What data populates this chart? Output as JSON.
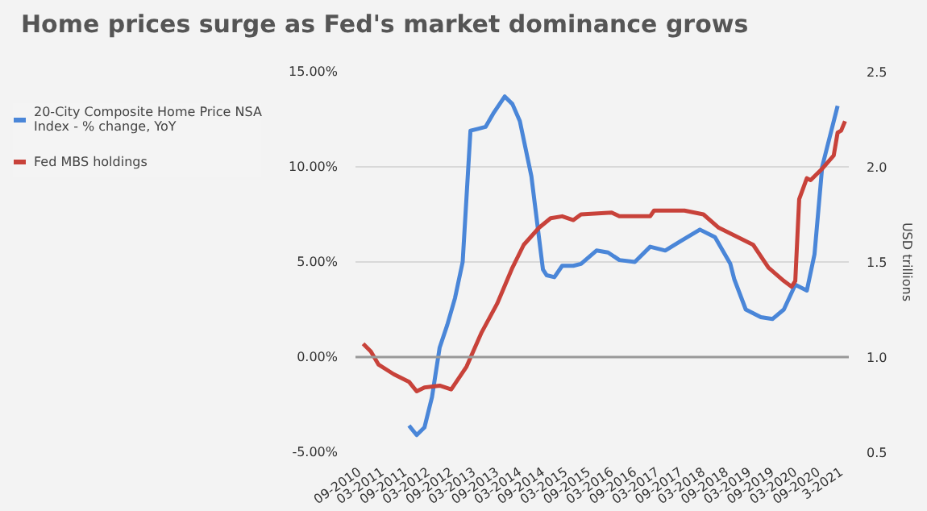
{
  "chart_data": {
    "type": "line",
    "title": "Home prices surge as Fed's market dominance grows",
    "y2label": "USD trillions",
    "xlim": [
      "2010-08",
      "2021-05"
    ],
    "xticks": [
      {
        "value": "2010-09",
        "label": "09-2010"
      },
      {
        "value": "2011-03",
        "label": "03-2011"
      },
      {
        "value": "2011-09",
        "label": "09-2011"
      },
      {
        "value": "2012-03",
        "label": "03-2012"
      },
      {
        "value": "2012-09",
        "label": "09-2012"
      },
      {
        "value": "2013-03",
        "label": "03-2013"
      },
      {
        "value": "2013-09",
        "label": "09-2013"
      },
      {
        "value": "2014-03",
        "label": "03-2014"
      },
      {
        "value": "2014-09",
        "label": "09-2014"
      },
      {
        "value": "2015-03",
        "label": "03-2015"
      },
      {
        "value": "2015-09",
        "label": "09-2015"
      },
      {
        "value": "2016-03",
        "label": "03-2016"
      },
      {
        "value": "2016-09",
        "label": "09-2016"
      },
      {
        "value": "2017-03",
        "label": "03-2017"
      },
      {
        "value": "2017-09",
        "label": "09-2017"
      },
      {
        "value": "2018-03",
        "label": "03-2018"
      },
      {
        "value": "2018-09",
        "label": "09-2018"
      },
      {
        "value": "2019-03",
        "label": "03-2019"
      },
      {
        "value": "2019-09",
        "label": "09-2019"
      },
      {
        "value": "2020-03",
        "label": "03-2020"
      },
      {
        "value": "2020-09",
        "label": "09-2020"
      },
      {
        "value": "2021-03",
        "label": "3-2021"
      }
    ],
    "ylim": [
      -5,
      15
    ],
    "yticks": [
      {
        "value": -5,
        "label": "-5.00%"
      },
      {
        "value": 0,
        "label": "0.00%"
      },
      {
        "value": 5,
        "label": "5.00%"
      },
      {
        "value": 10,
        "label": "10.00%"
      },
      {
        "value": 15,
        "label": "15.00%"
      }
    ],
    "y2lim": [
      0.5,
      2.5
    ],
    "y2ticks": [
      0.5,
      {
        "value": 1,
        "label": "1.0"
      },
      1.5,
      {
        "value": 2,
        "label": "2.0"
      },
      2.5
    ],
    "grid": "y",
    "legend": "left",
    "line_style": "solid",
    "ref_lines": [
      {
        "axis": "y",
        "value": 0,
        "color": "#999999"
      }
    ],
    "series": [
      {
        "name": "20-City Composite Home Price NSA Index - % change, YoY",
        "color": "#4a86d8",
        "x": [
          "2011-10",
          "2011-12",
          "2012-02",
          "2012-04",
          "2012-06",
          "2012-08",
          "2012-10",
          "2012-12",
          "2013-02",
          "2013-04",
          "2013-06",
          "2013-08",
          "2013-11",
          "2014-01",
          "2014-03",
          "2014-06",
          "2014-09",
          "2014-10",
          "2014-12",
          "2015-02",
          "2015-05",
          "2015-07",
          "2015-11",
          "2016-02",
          "2016-05",
          "2016-09",
          "2017-01",
          "2017-05",
          "2017-09",
          "2018-02",
          "2018-06",
          "2018-10",
          "2018-11",
          "2019-02",
          "2019-06",
          "2019-09",
          "2019-12",
          "2020-03",
          "2020-06",
          "2020-08",
          "2020-10",
          "2021-02"
        ],
        "values": [
          -3.6,
          -4.1,
          -3.7,
          -2.1,
          0.5,
          1.7,
          3.1,
          5.0,
          11.9,
          12.0,
          12.1,
          12.8,
          13.7,
          13.3,
          12.4,
          9.5,
          4.6,
          4.3,
          4.2,
          4.8,
          4.8,
          4.9,
          5.6,
          5.5,
          5.1,
          5.0,
          5.8,
          5.6,
          6.1,
          6.7,
          6.3,
          4.9,
          4.1,
          2.5,
          2.1,
          2.0,
          2.5,
          3.8,
          3.5,
          5.4,
          10.0,
          13.2
        ]
      },
      {
        "name": "Fed MBS holdings",
        "color": "#c8423a",
        "axis": "y2",
        "x": [
          "2010-10",
          "2010-12",
          "2011-02",
          "2011-06",
          "2011-10",
          "2011-12",
          "2012-02",
          "2012-06",
          "2012-09",
          "2013-01",
          "2013-05",
          "2013-09",
          "2014-01",
          "2014-04",
          "2014-08",
          "2014-11",
          "2015-02",
          "2015-05",
          "2015-07",
          "2016-03",
          "2016-05",
          "2017-01",
          "2017-02",
          "2017-10",
          "2018-03",
          "2018-07",
          "2019-04",
          "2019-08",
          "2019-12",
          "2020-02",
          "2020-03",
          "2020-04",
          "2020-06",
          "2020-07",
          "2020-10",
          "2021-01",
          "2021-02",
          "2021-03",
          "2021-04"
        ],
        "values": [
          1.07,
          1.03,
          0.96,
          0.91,
          0.87,
          0.82,
          0.84,
          0.85,
          0.83,
          0.95,
          1.13,
          1.28,
          1.47,
          1.59,
          1.68,
          1.73,
          1.74,
          1.72,
          1.75,
          1.76,
          1.74,
          1.74,
          1.77,
          1.77,
          1.75,
          1.68,
          1.59,
          1.47,
          1.4,
          1.37,
          1.4,
          1.83,
          1.94,
          1.93,
          1.99,
          2.06,
          2.18,
          2.19,
          2.24
        ]
      }
    ]
  }
}
